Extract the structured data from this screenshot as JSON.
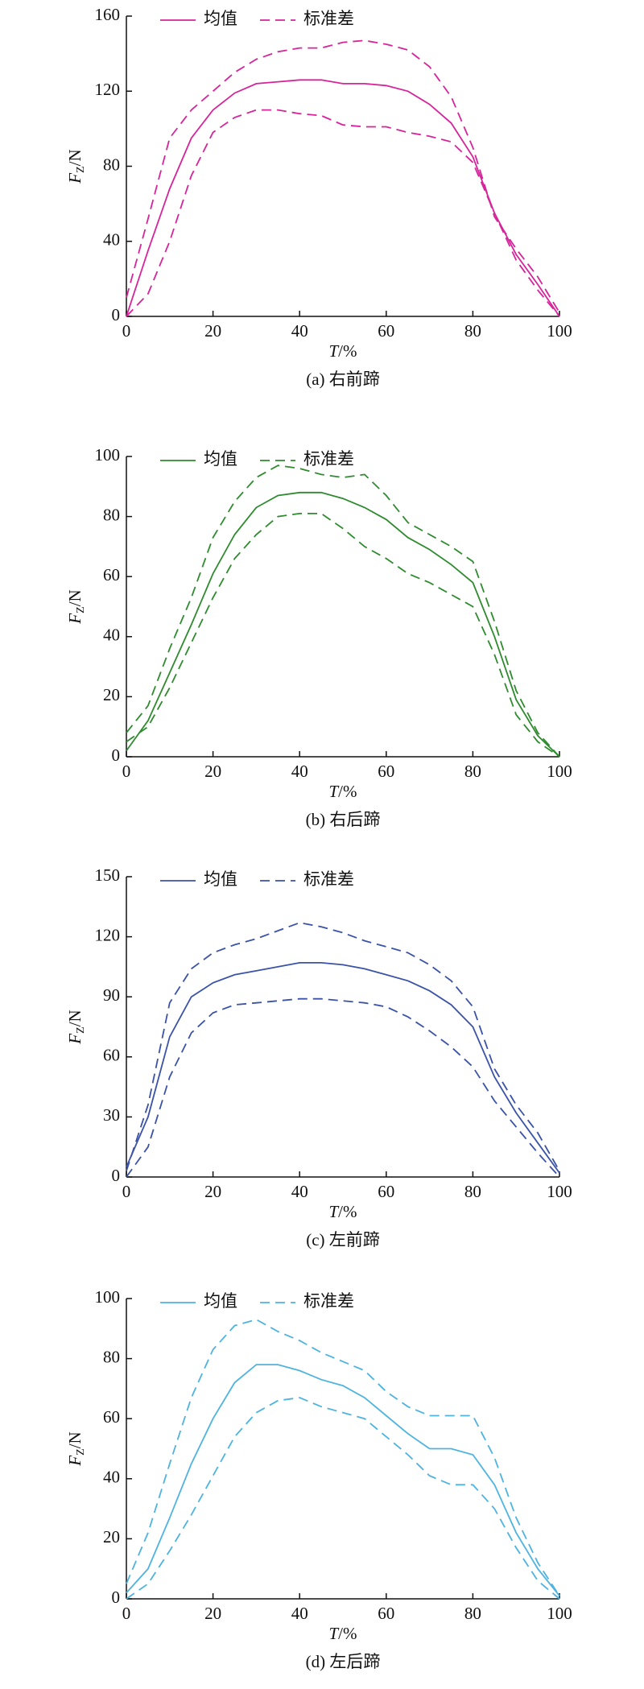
{
  "chart_data": [
    {
      "type": "line",
      "caption": "(a) 右前蹄",
      "ylabel": "F",
      "ylabel_sub": "Z",
      "ylabel_unit": "/N",
      "xlabel": "T",
      "xlabel_unit": "/%",
      "x": [
        0,
        5,
        10,
        15,
        20,
        25,
        30,
        35,
        40,
        45,
        50,
        55,
        60,
        65,
        70,
        75,
        80,
        85,
        90,
        95,
        100
      ],
      "xlim": [
        0,
        100
      ],
      "xticks": [
        0,
        20,
        40,
        60,
        80,
        100
      ],
      "ylim": [
        0,
        160
      ],
      "yticks": [
        0,
        40,
        80,
        120,
        160
      ],
      "series": [
        {
          "name": "均值",
          "color": "#d6249a",
          "dashed": false,
          "values": [
            0,
            35,
            68,
            95,
            110,
            119,
            124,
            125,
            126,
            126,
            124,
            124,
            123,
            120,
            113,
            103,
            85,
            55,
            33,
            17,
            0
          ]
        },
        {
          "name": "标准差",
          "color": "#d6249a",
          "dashed": true,
          "values": [
            10,
            52,
            95,
            110,
            120,
            130,
            137,
            141,
            143,
            143,
            146,
            147,
            145,
            142,
            133,
            117,
            90,
            53,
            36,
            21,
            2
          ]
        },
        {
          "color": "#d6249a",
          "dashed": true,
          "values": [
            0,
            12,
            40,
            75,
            98,
            106,
            110,
            110,
            108,
            107,
            102,
            101,
            101,
            98,
            96,
            93,
            82,
            55,
            30,
            14,
            0
          ]
        }
      ]
    },
    {
      "type": "line",
      "caption": "(b) 右后蹄",
      "ylabel": "F",
      "ylabel_sub": "Z",
      "ylabel_unit": "/N",
      "xlabel": "T",
      "xlabel_unit": "/%",
      "x": [
        0,
        5,
        10,
        15,
        20,
        25,
        30,
        35,
        40,
        45,
        50,
        55,
        60,
        65,
        70,
        75,
        80,
        85,
        90,
        95,
        100
      ],
      "xlim": [
        0,
        100
      ],
      "xticks": [
        0,
        20,
        40,
        60,
        80,
        100
      ],
      "ylim": [
        0,
        100
      ],
      "yticks": [
        0,
        20,
        40,
        60,
        80,
        100
      ],
      "series": [
        {
          "name": "均值",
          "color": "#2e8b2e",
          "dashed": false,
          "values": [
            2,
            12,
            28,
            44,
            61,
            74,
            83,
            87,
            88,
            88,
            86,
            83,
            79,
            73,
            69,
            64,
            58,
            40,
            19,
            7,
            0
          ]
        },
        {
          "name": "标准差",
          "color": "#2e8b2e",
          "dashed": true,
          "values": [
            8,
            17,
            36,
            53,
            73,
            85,
            93,
            97,
            96,
            94,
            93,
            94,
            87,
            78,
            74,
            70,
            65,
            45,
            22,
            8,
            0
          ]
        },
        {
          "color": "#2e8b2e",
          "dashed": true,
          "values": [
            5,
            10,
            23,
            38,
            53,
            66,
            74,
            80,
            81,
            81,
            76,
            70,
            66,
            61,
            58,
            54,
            50,
            34,
            14,
            5,
            0
          ]
        }
      ]
    },
    {
      "type": "line",
      "caption": "(c) 左前蹄",
      "ylabel": "F",
      "ylabel_sub": "Z",
      "ylabel_unit": "/N",
      "xlabel": "T",
      "xlabel_unit": "/%",
      "x": [
        0,
        5,
        10,
        15,
        20,
        25,
        30,
        35,
        40,
        45,
        50,
        55,
        60,
        65,
        70,
        75,
        80,
        85,
        90,
        95,
        100
      ],
      "xlim": [
        0,
        100
      ],
      "xticks": [
        0,
        20,
        40,
        60,
        80,
        100
      ],
      "ylim": [
        0,
        150
      ],
      "yticks": [
        0,
        30,
        60,
        90,
        120,
        150
      ],
      "series": [
        {
          "name": "均值",
          "color": "#3a52a8",
          "dashed": false,
          "values": [
            5,
            30,
            70,
            90,
            97,
            101,
            103,
            105,
            107,
            107,
            106,
            104,
            101,
            98,
            93,
            86,
            75,
            50,
            32,
            17,
            2
          ]
        },
        {
          "name": "标准差",
          "color": "#3a52a8",
          "dashed": true,
          "values": [
            3,
            36,
            87,
            104,
            112,
            116,
            119,
            123,
            127,
            125,
            122,
            118,
            115,
            112,
            106,
            98,
            85,
            54,
            36,
            22,
            3
          ]
        },
        {
          "color": "#3a52a8",
          "dashed": true,
          "values": [
            0,
            15,
            50,
            72,
            82,
            86,
            87,
            88,
            89,
            89,
            88,
            87,
            85,
            80,
            73,
            65,
            55,
            38,
            25,
            12,
            0
          ]
        }
      ]
    },
    {
      "type": "line",
      "caption": "(d) 左后蹄",
      "ylabel": "F",
      "ylabel_sub": "Z",
      "ylabel_unit": "/N",
      "xlabel": "T",
      "xlabel_unit": "/%",
      "x": [
        0,
        5,
        10,
        15,
        20,
        25,
        30,
        35,
        40,
        45,
        50,
        55,
        60,
        65,
        70,
        75,
        80,
        85,
        90,
        95,
        100
      ],
      "xlim": [
        0,
        100
      ],
      "xticks": [
        0,
        20,
        40,
        60,
        80,
        100
      ],
      "ylim": [
        0,
        100
      ],
      "yticks": [
        0,
        20,
        40,
        60,
        80,
        100
      ],
      "series": [
        {
          "name": "均值",
          "color": "#4db3e0",
          "dashed": false,
          "values": [
            2,
            10,
            27,
            45,
            60,
            72,
            78,
            78,
            76,
            73,
            71,
            67,
            61,
            55,
            50,
            50,
            48,
            38,
            22,
            10,
            1
          ]
        },
        {
          "name": "标准差",
          "color": "#4db3e0",
          "dashed": true,
          "values": [
            5,
            22,
            45,
            67,
            83,
            91,
            93,
            89,
            86,
            82,
            79,
            76,
            69,
            64,
            61,
            61,
            61,
            47,
            27,
            12,
            1
          ]
        },
        {
          "color": "#4db3e0",
          "dashed": true,
          "values": [
            0,
            5,
            16,
            28,
            41,
            54,
            62,
            66,
            67,
            64,
            62,
            60,
            54,
            48,
            41,
            38,
            38,
            30,
            17,
            6,
            0
          ]
        }
      ]
    }
  ]
}
